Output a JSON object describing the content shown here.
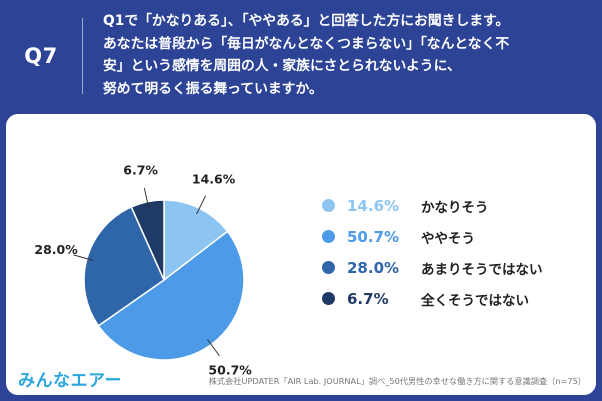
{
  "header": {
    "q_number": "Q7",
    "question": "Q1で「かなりある」、「ややある」と回答した方にお聞きします。\nあなたは普段から「毎日がなんとなくつまらない」「なんとなく不\n安」という感情を周囲の人・家族にさとられないように、\n努めて明るく振る舞っていますか。"
  },
  "chart_data": {
    "type": "pie",
    "title": "",
    "categories": [
      "かなりそう",
      "ややそう",
      "あまりそうではない",
      "全くそうではない"
    ],
    "values": [
      14.6,
      50.7,
      28.0,
      6.7
    ],
    "labels": [
      "14.6%",
      "50.7%",
      "28.0%",
      "6.7%"
    ],
    "colors": [
      "#8cc4f2",
      "#4c9ae8",
      "#2f66aa",
      "#1f3a66"
    ],
    "start": "12 o'clock, clockwise",
    "legend_position": "right"
  },
  "footer": {
    "logo": "みんなエアー",
    "source": "株式会社UPDATER「AIR Lab. JOURNAL」調べ_50代男性の幸せな働き方に関する意識調査（n=75）"
  }
}
